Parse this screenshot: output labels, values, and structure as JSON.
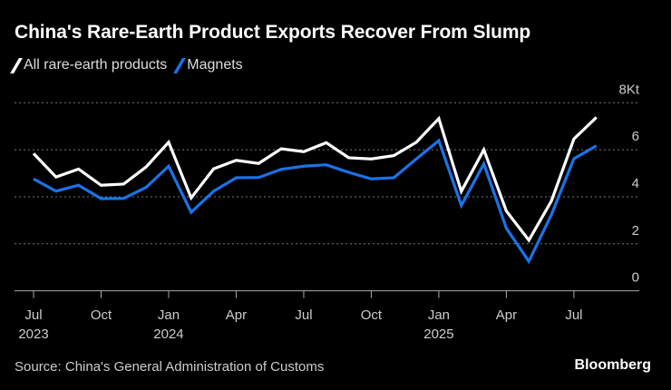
{
  "chart_data": {
    "type": "line",
    "title": "China's Rare-Earth Product Exports Recover From Slump",
    "unit_label": "8Kt",
    "ylim": [
      0,
      8
    ],
    "yticks": [
      0,
      2,
      4,
      6,
      8
    ],
    "ytick_labels": [
      "0",
      "2",
      "4",
      "6",
      "8Kt"
    ],
    "x": [
      "2023-07",
      "2023-08",
      "2023-09",
      "2023-10",
      "2023-11",
      "2023-12",
      "2024-01",
      "2024-02",
      "2024-03",
      "2024-04",
      "2024-05",
      "2024-06",
      "2024-07",
      "2024-08",
      "2024-09",
      "2024-10",
      "2024-11",
      "2024-12",
      "2025-01",
      "2025-02",
      "2025-03",
      "2025-04",
      "2025-05",
      "2025-06",
      "2025-07",
      "2025-08"
    ],
    "xticks": [
      {
        "index": 0,
        "label": "Jul",
        "year": "2023"
      },
      {
        "index": 3,
        "label": "Oct",
        "year": ""
      },
      {
        "index": 6,
        "label": "Jan",
        "year": "2024"
      },
      {
        "index": 9,
        "label": "Apr",
        "year": ""
      },
      {
        "index": 12,
        "label": "Jul",
        "year": ""
      },
      {
        "index": 15,
        "label": "Oct",
        "year": ""
      },
      {
        "index": 18,
        "label": "Jan",
        "year": "2025"
      },
      {
        "index": 21,
        "label": "Apr",
        "year": ""
      },
      {
        "index": 24,
        "label": "Jul",
        "year": ""
      }
    ],
    "series": [
      {
        "name": "All rare-earth products",
        "color": "#ffffff",
        "values": [
          5.84,
          4.84,
          5.18,
          4.49,
          4.54,
          5.27,
          6.32,
          3.95,
          5.19,
          5.55,
          5.42,
          6.04,
          5.92,
          6.3,
          5.66,
          5.61,
          5.75,
          6.32,
          7.33,
          4.23,
          6.0,
          3.39,
          2.15,
          3.82,
          6.46,
          7.38
        ]
      },
      {
        "name": "Magnets",
        "color": "#1a73e8",
        "values": [
          4.76,
          4.24,
          4.49,
          3.92,
          3.93,
          4.4,
          5.3,
          3.34,
          4.24,
          4.81,
          4.82,
          5.17,
          5.3,
          5.36,
          5.04,
          4.76,
          4.81,
          5.61,
          6.39,
          3.63,
          5.4,
          2.66,
          1.25,
          3.24,
          5.62,
          6.17
        ]
      }
    ],
    "grid": true,
    "legend": "top-left"
  },
  "source": "Source: China's General Administration of Customs",
  "brand": "Bloomberg"
}
